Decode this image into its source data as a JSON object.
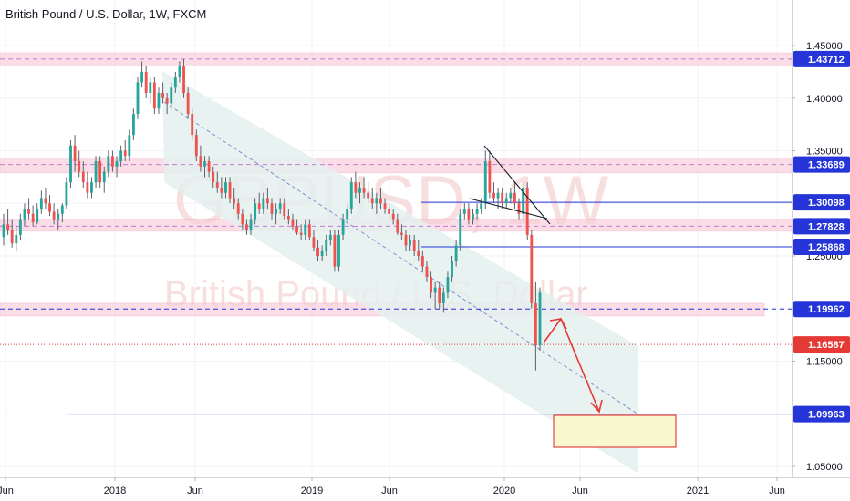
{
  "header": {
    "title": "British Pound / U.S. Dollar, 1W, FXCM"
  },
  "watermark": {
    "symbol": "GBPUSD, 1W",
    "description": "British Pound / U.S. Dollar"
  },
  "colors": {
    "up": "#26a69a",
    "down": "#ef5350",
    "wick": "#5d606b",
    "zone": "#f8d0dc",
    "zone_line": "#c37bd6",
    "blue": "#2535d8",
    "red": "#e53935",
    "channel": "#e4f0ef",
    "target_fill": "#f9f8cf",
    "target_border": "#e02020",
    "grid": "#f0f3fa",
    "axis_text": "#131722"
  },
  "chart_data": {
    "type": "candlestick",
    "title": "British Pound / U.S. Dollar, 1W, FXCM",
    "x_ticks": [
      "Jun",
      "2018",
      "Jun",
      "2019",
      "Jun",
      "2020",
      "Jun",
      "2021",
      "Jun"
    ],
    "y_ticks": [
      "1.45000",
      "1.40000",
      "1.35000",
      "1.30000",
      "1.25000",
      "1.20000",
      "1.15000",
      "1.10000",
      "1.05000"
    ],
    "ylim": [
      1.04,
      1.46
    ],
    "price_tags": [
      {
        "label": "1.43712",
        "value": 1.43712,
        "color": "#2535d8"
      },
      {
        "label": "1.33689",
        "value": 1.33689,
        "color": "#2535d8"
      },
      {
        "label": "1.30098",
        "value": 1.30098,
        "color": "#2535d8"
      },
      {
        "label": "1.27828",
        "value": 1.27828,
        "color": "#2535d8"
      },
      {
        "label": "1.25868",
        "value": 1.25868,
        "color": "#2535d8"
      },
      {
        "label": "1.19962",
        "value": 1.19962,
        "color": "#2535d8"
      },
      {
        "label": "1.16587",
        "value": 1.16587,
        "color": "#e53935"
      },
      {
        "label": "1.09963",
        "value": 1.09963,
        "color": "#2535d8"
      }
    ],
    "zones": [
      {
        "low": 1.4305,
        "high": 1.443
      },
      {
        "low": 1.329,
        "high": 1.342
      },
      {
        "low": 1.2735,
        "high": 1.285
      },
      {
        "low": 1.193,
        "high": 1.205
      }
    ],
    "series": [
      {
        "name": "GBPUSD",
        "ohlc": [
          [
            1.268,
            1.29,
            1.26,
            1.28
          ],
          [
            1.28,
            1.295,
            1.27,
            1.275
          ],
          [
            1.275,
            1.285,
            1.258,
            1.262
          ],
          [
            1.262,
            1.278,
            1.255,
            1.27
          ],
          [
            1.27,
            1.29,
            1.265,
            1.285
          ],
          [
            1.285,
            1.3,
            1.278,
            1.295
          ],
          [
            1.295,
            1.305,
            1.285,
            1.29
          ],
          [
            1.29,
            1.298,
            1.278,
            1.282
          ],
          [
            1.282,
            1.3,
            1.28,
            1.295
          ],
          [
            1.295,
            1.312,
            1.29,
            1.305
          ],
          [
            1.305,
            1.315,
            1.295,
            1.3
          ],
          [
            1.3,
            1.308,
            1.288,
            1.292
          ],
          [
            1.292,
            1.3,
            1.28,
            1.285
          ],
          [
            1.285,
            1.295,
            1.275,
            1.29
          ],
          [
            1.29,
            1.3,
            1.282,
            1.298
          ],
          [
            1.298,
            1.325,
            1.295,
            1.32
          ],
          [
            1.32,
            1.36,
            1.315,
            1.355
          ],
          [
            1.355,
            1.365,
            1.33,
            1.34
          ],
          [
            1.34,
            1.35,
            1.325,
            1.33
          ],
          [
            1.33,
            1.34,
            1.315,
            1.32
          ],
          [
            1.32,
            1.33,
            1.305,
            1.31
          ],
          [
            1.31,
            1.325,
            1.305,
            1.32
          ],
          [
            1.32,
            1.345,
            1.315,
            1.34
          ],
          [
            1.34,
            1.345,
            1.315,
            1.32
          ],
          [
            1.32,
            1.335,
            1.31,
            1.33
          ],
          [
            1.33,
            1.35,
            1.325,
            1.345
          ],
          [
            1.345,
            1.35,
            1.33,
            1.335
          ],
          [
            1.335,
            1.345,
            1.325,
            1.34
          ],
          [
            1.34,
            1.355,
            1.335,
            1.35
          ],
          [
            1.35,
            1.36,
            1.34,
            1.345
          ],
          [
            1.345,
            1.37,
            1.34,
            1.365
          ],
          [
            1.365,
            1.39,
            1.36,
            1.385
          ],
          [
            1.385,
            1.42,
            1.38,
            1.415
          ],
          [
            1.415,
            1.435,
            1.41,
            1.425
          ],
          [
            1.425,
            1.43,
            1.4,
            1.405
          ],
          [
            1.405,
            1.42,
            1.395,
            1.415
          ],
          [
            1.415,
            1.42,
            1.385,
            1.39
          ],
          [
            1.39,
            1.41,
            1.385,
            1.405
          ],
          [
            1.405,
            1.415,
            1.395,
            1.4
          ],
          [
            1.4,
            1.405,
            1.385,
            1.395
          ],
          [
            1.395,
            1.415,
            1.39,
            1.41
          ],
          [
            1.41,
            1.425,
            1.405,
            1.42
          ],
          [
            1.42,
            1.435,
            1.415,
            1.43
          ],
          [
            1.43,
            1.437,
            1.4,
            1.405
          ],
          [
            1.405,
            1.41,
            1.38,
            1.385
          ],
          [
            1.385,
            1.39,
            1.36,
            1.365
          ],
          [
            1.365,
            1.37,
            1.34,
            1.345
          ],
          [
            1.345,
            1.355,
            1.33,
            1.335
          ],
          [
            1.335,
            1.345,
            1.325,
            1.34
          ],
          [
            1.34,
            1.345,
            1.325,
            1.33
          ],
          [
            1.33,
            1.335,
            1.315,
            1.32
          ],
          [
            1.32,
            1.33,
            1.31,
            1.315
          ],
          [
            1.315,
            1.325,
            1.305,
            1.31
          ],
          [
            1.31,
            1.325,
            1.305,
            1.32
          ],
          [
            1.32,
            1.325,
            1.3,
            1.305
          ],
          [
            1.305,
            1.315,
            1.295,
            1.3
          ],
          [
            1.3,
            1.305,
            1.285,
            1.29
          ],
          [
            1.29,
            1.295,
            1.275,
            1.28
          ],
          [
            1.28,
            1.285,
            1.27,
            1.275
          ],
          [
            1.275,
            1.29,
            1.27,
            1.285
          ],
          [
            1.285,
            1.305,
            1.28,
            1.3
          ],
          [
            1.3,
            1.31,
            1.29,
            1.295
          ],
          [
            1.295,
            1.31,
            1.29,
            1.305
          ],
          [
            1.305,
            1.315,
            1.295,
            1.3
          ],
          [
            1.3,
            1.305,
            1.285,
            1.29
          ],
          [
            1.29,
            1.3,
            1.28,
            1.295
          ],
          [
            1.295,
            1.305,
            1.29,
            1.3
          ],
          [
            1.3,
            1.305,
            1.285,
            1.288
          ],
          [
            1.288,
            1.295,
            1.28,
            1.285
          ],
          [
            1.285,
            1.29,
            1.275,
            1.278
          ],
          [
            1.278,
            1.285,
            1.27,
            1.272
          ],
          [
            1.272,
            1.28,
            1.265,
            1.27
          ],
          [
            1.27,
            1.285,
            1.265,
            1.28
          ],
          [
            1.28,
            1.285,
            1.265,
            1.268
          ],
          [
            1.268,
            1.275,
            1.255,
            1.258
          ],
          [
            1.258,
            1.265,
            1.245,
            1.25
          ],
          [
            1.25,
            1.26,
            1.245,
            1.255
          ],
          [
            1.255,
            1.27,
            1.25,
            1.265
          ],
          [
            1.265,
            1.275,
            1.26,
            1.27
          ],
          [
            1.27,
            1.275,
            1.235,
            1.24
          ],
          [
            1.24,
            1.275,
            1.235,
            1.27
          ],
          [
            1.27,
            1.29,
            1.265,
            1.285
          ],
          [
            1.285,
            1.3,
            1.28,
            1.295
          ],
          [
            1.295,
            1.325,
            1.29,
            1.32
          ],
          [
            1.32,
            1.33,
            1.305,
            1.31
          ],
          [
            1.31,
            1.32,
            1.3,
            1.315
          ],
          [
            1.315,
            1.325,
            1.305,
            1.31
          ],
          [
            1.31,
            1.32,
            1.3,
            1.305
          ],
          [
            1.305,
            1.315,
            1.295,
            1.3
          ],
          [
            1.3,
            1.31,
            1.29,
            1.305
          ],
          [
            1.305,
            1.315,
            1.295,
            1.3
          ],
          [
            1.3,
            1.305,
            1.29,
            1.295
          ],
          [
            1.295,
            1.3,
            1.285,
            1.29
          ],
          [
            1.29,
            1.295,
            1.28,
            1.285
          ],
          [
            1.285,
            1.29,
            1.27,
            1.272
          ],
          [
            1.272,
            1.28,
            1.265,
            1.27
          ],
          [
            1.27,
            1.275,
            1.255,
            1.26
          ],
          [
            1.26,
            1.27,
            1.255,
            1.265
          ],
          [
            1.265,
            1.27,
            1.25,
            1.255
          ],
          [
            1.255,
            1.265,
            1.245,
            1.25
          ],
          [
            1.25,
            1.255,
            1.235,
            1.24
          ],
          [
            1.24,
            1.245,
            1.225,
            1.23
          ],
          [
            1.23,
            1.235,
            1.21,
            1.215
          ],
          [
            1.215,
            1.225,
            1.2,
            1.22
          ],
          [
            1.22,
            1.225,
            1.2,
            1.205
          ],
          [
            1.205,
            1.22,
            1.196,
            1.215
          ],
          [
            1.215,
            1.235,
            1.21,
            1.23
          ],
          [
            1.23,
            1.25,
            1.225,
            1.245
          ],
          [
            1.245,
            1.265,
            1.24,
            1.26
          ],
          [
            1.26,
            1.295,
            1.255,
            1.29
          ],
          [
            1.29,
            1.3,
            1.285,
            1.295
          ],
          [
            1.295,
            1.3,
            1.28,
            1.285
          ],
          [
            1.285,
            1.295,
            1.28,
            1.29
          ],
          [
            1.29,
            1.3,
            1.285,
            1.295
          ],
          [
            1.295,
            1.305,
            1.29,
            1.3
          ],
          [
            1.3,
            1.35,
            1.295,
            1.34
          ],
          [
            1.34,
            1.35,
            1.305,
            1.31
          ],
          [
            1.31,
            1.32,
            1.3,
            1.305
          ],
          [
            1.305,
            1.315,
            1.295,
            1.31
          ],
          [
            1.31,
            1.315,
            1.295,
            1.3
          ],
          [
            1.3,
            1.31,
            1.295,
            1.305
          ],
          [
            1.305,
            1.315,
            1.3,
            1.31
          ],
          [
            1.31,
            1.32,
            1.295,
            1.3
          ],
          [
            1.3,
            1.305,
            1.285,
            1.29
          ],
          [
            1.29,
            1.32,
            1.285,
            1.315
          ],
          [
            1.315,
            1.32,
            1.265,
            1.27
          ],
          [
            1.27,
            1.275,
            1.2,
            1.205
          ],
          [
            1.205,
            1.225,
            1.1412,
            1.165
          ],
          [
            1.165,
            1.22,
            1.16,
            1.215
          ]
        ]
      }
    ]
  }
}
